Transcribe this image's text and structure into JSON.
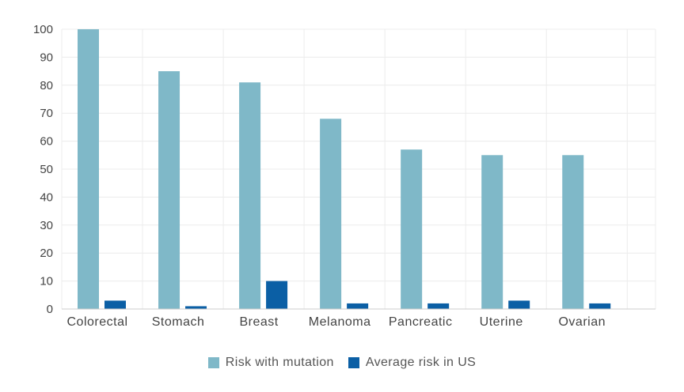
{
  "chart_data": {
    "type": "bar",
    "categories": [
      "Colorectal",
      "Stomach",
      "Breast",
      "Melanoma",
      "Pancreatic",
      "Uterine",
      "Ovarian"
    ],
    "series": [
      {
        "name": "Risk with mutation",
        "color": "#7fb8c8",
        "values": [
          100,
          85,
          81,
          68,
          57,
          55,
          55
        ]
      },
      {
        "name": "Average risk in US",
        "color": "#0b5fa5",
        "values": [
          3,
          1,
          10,
          2,
          2,
          3,
          2
        ]
      }
    ],
    "yticks": [
      0,
      10,
      20,
      30,
      40,
      50,
      60,
      70,
      80,
      90,
      100
    ],
    "ylim": [
      0,
      100
    ],
    "grid": true,
    "legend_position": "bottom-center"
  }
}
